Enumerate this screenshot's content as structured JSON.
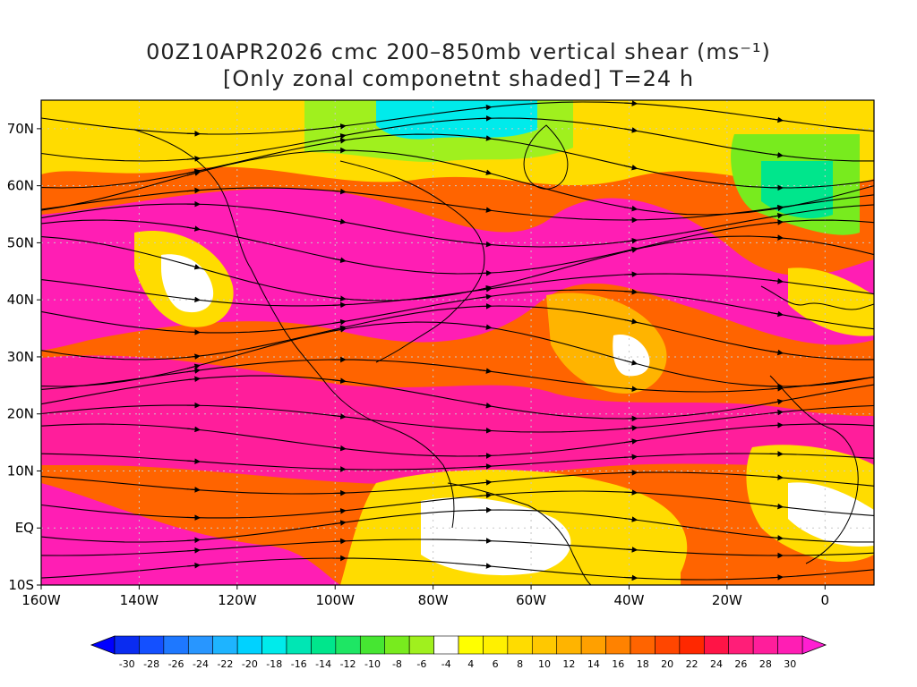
{
  "title": {
    "line1": "00Z10APR2026 cmc 200–850mb vertical shear (ms⁻¹)",
    "line2": "[Only zonal componetnt shaded] T=24 h"
  },
  "axes": {
    "lat_labels": [
      "70N",
      "60N",
      "50N",
      "40N",
      "30N",
      "20N",
      "10N",
      "EQ",
      "10S"
    ],
    "lat_values": [
      70,
      60,
      50,
      40,
      30,
      20,
      10,
      0,
      -10
    ],
    "lon_labels": [
      "160W",
      "140W",
      "120W",
      "100W",
      "80W",
      "60W",
      "40W",
      "20W",
      "0"
    ],
    "lon_values": [
      -160,
      -140,
      -120,
      -100,
      -80,
      -60,
      -40,
      -20,
      0
    ],
    "lat_range": [
      -10,
      75
    ],
    "lon_range": [
      -160,
      10
    ]
  },
  "colorbar": {
    "labels": [
      "-30",
      "-28",
      "-26",
      "-24",
      "-22",
      "-20",
      "-18",
      "-16",
      "-14",
      "-12",
      "-10",
      "-8",
      "-6",
      "-4",
      "4",
      "6",
      "8",
      "10",
      "12",
      "14",
      "16",
      "18",
      "20",
      "22",
      "24",
      "26",
      "28",
      "30"
    ],
    "colors": [
      "#0a2cf0",
      "#1450ff",
      "#1e78ff",
      "#2896ff",
      "#1eb4ff",
      "#00d2ff",
      "#00ebeb",
      "#00e6b4",
      "#00e68c",
      "#1ee664",
      "#46e632",
      "#78eb1e",
      "#a0f01e",
      "#ffffff",
      "#ffff00",
      "#fff000",
      "#ffdc00",
      "#ffc800",
      "#ffb400",
      "#ffa000",
      "#ff8200",
      "#ff6400",
      "#ff4600",
      "#ff2800",
      "#ff1446",
      "#ff1e78",
      "#ff1e9b",
      "#ff1eb4"
    ]
  },
  "colors": {
    "high_shear": "#ff1eb4",
    "mid_shear": "#ff6400",
    "low_shear": "#ffdc00",
    "negative_shear": "#46e632",
    "streamline": "#000000",
    "coastline": "#000000",
    "contour": "#9b30c8",
    "gridline": "#c8c8c8"
  }
}
